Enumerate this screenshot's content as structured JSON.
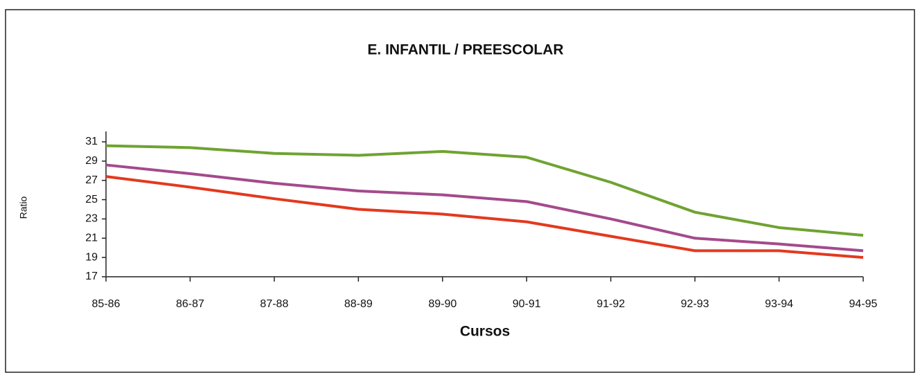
{
  "chart_data": {
    "type": "line",
    "title": "E. INFANTIL / PREESCOLAR",
    "x_label": "Cursos",
    "y_label": "Ratio",
    "categories": [
      "85-86",
      "86-87",
      "87-88",
      "88-89",
      "89-90",
      "90-91",
      "91-92",
      "92-93",
      "93-94",
      "94-95"
    ],
    "series": [
      {
        "color": "#6fa331",
        "values": [
          30.6,
          30.4,
          29.8,
          29.6,
          30.0,
          29.4,
          26.8,
          23.7,
          22.1,
          21.3
        ]
      },
      {
        "color": "#a44a8c",
        "values": [
          28.6,
          27.7,
          26.7,
          25.9,
          25.5,
          24.8,
          23.0,
          21.0,
          20.4,
          19.7
        ]
      },
      {
        "color": "#e3391f",
        "values": [
          27.4,
          26.3,
          25.1,
          24.0,
          23.5,
          22.7,
          21.2,
          19.7,
          19.7,
          19.0
        ]
      }
    ],
    "ylim": [
      17,
      31
    ],
    "yticks": [
      17,
      19,
      21,
      23,
      25,
      27,
      29,
      31
    ],
    "grid": false
  }
}
